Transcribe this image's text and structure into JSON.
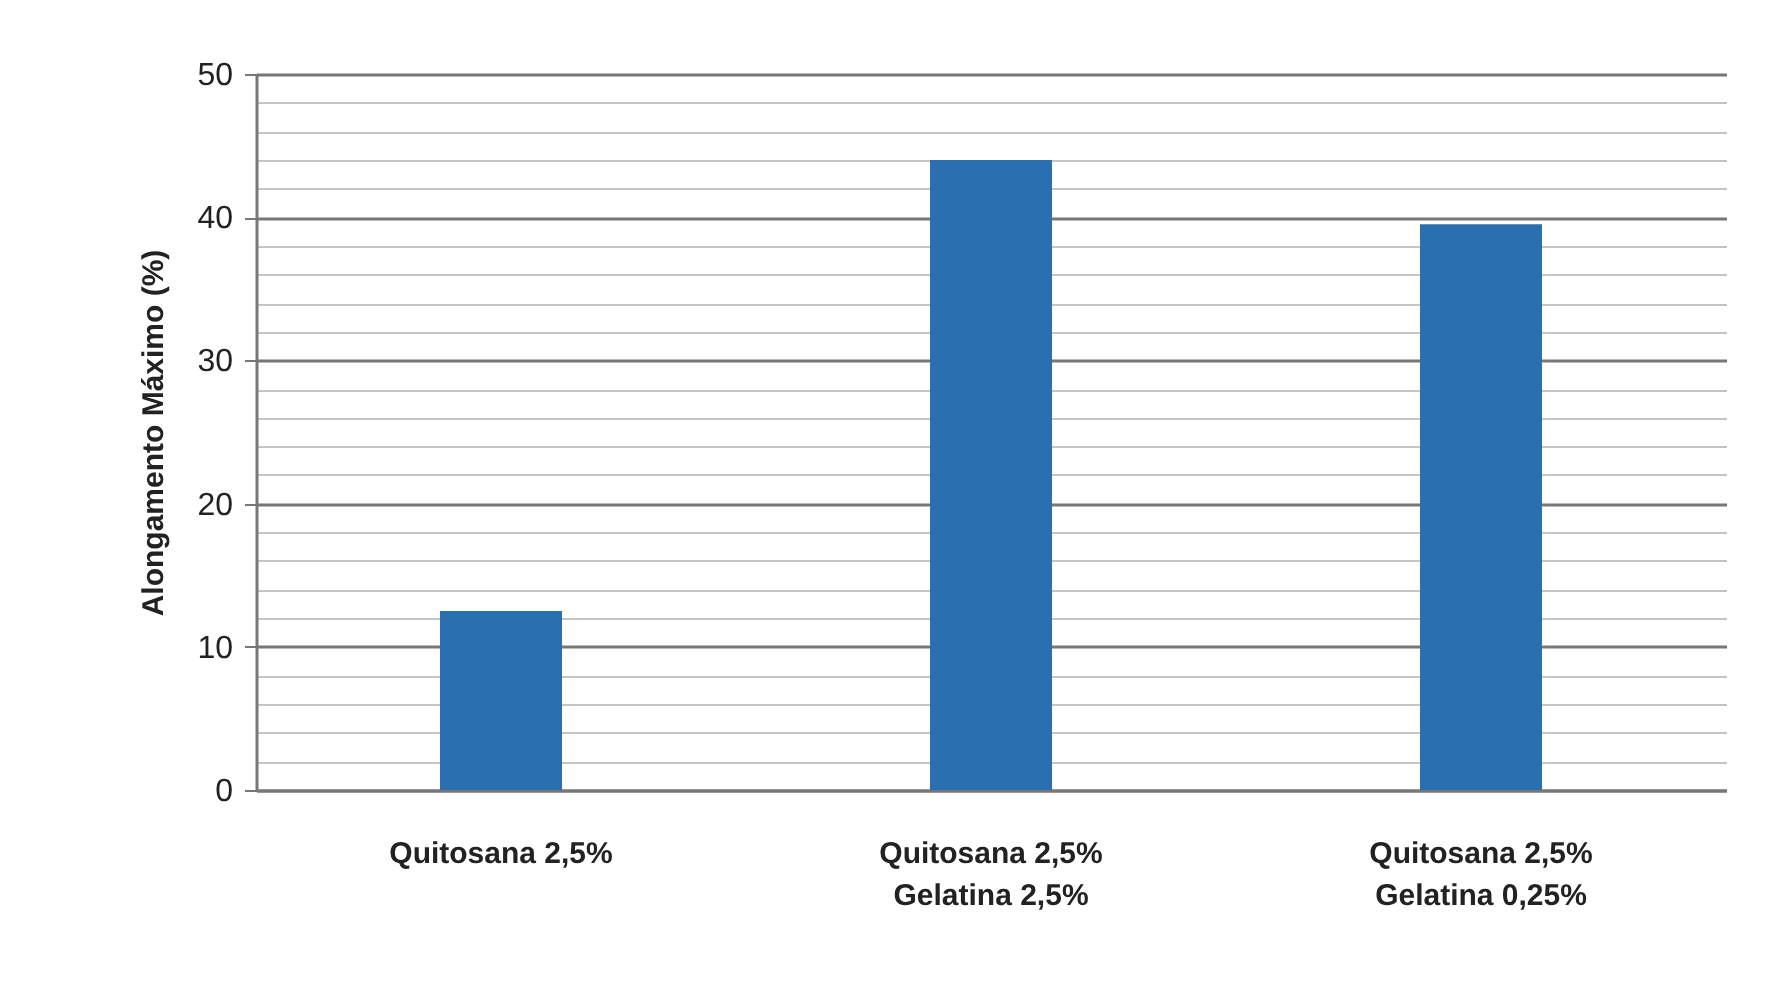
{
  "chart_data": {
    "type": "bar",
    "ylabel": "Alongamento Máximo (%)",
    "categories": [
      "Quitosana 2,5%",
      "Quitosana 2,5%\nGelatina 2,5%",
      "Quitosana 2,5%\nGelatina 0,25%"
    ],
    "values": [
      12.5,
      44,
      39.5
    ],
    "color": "#2a6fb0",
    "ylim": [
      0,
      50
    ],
    "yticks": [
      0,
      {
        "value": 2,
        "label": null
      },
      {
        "value": 4,
        "label": null
      },
      {
        "value": 6,
        "label": null
      },
      {
        "value": 8,
        "label": null
      },
      10,
      {
        "value": 12,
        "label": null
      },
      {
        "value": 14,
        "label": null
      },
      {
        "value": 16,
        "label": null
      },
      {
        "value": 18,
        "label": null
      },
      20,
      {
        "value": 22,
        "label": null
      },
      {
        "value": 24,
        "label": null
      },
      {
        "value": 26,
        "label": null
      },
      {
        "value": 28,
        "label": null
      },
      30,
      {
        "value": 32,
        "label": null
      },
      {
        "value": 34,
        "label": null
      },
      {
        "value": 36,
        "label": null
      },
      {
        "value": 38,
        "label": null
      },
      40,
      {
        "value": 42,
        "label": null
      },
      {
        "value": 44,
        "label": null
      },
      {
        "value": 46,
        "label": null
      },
      {
        "value": 48,
        "label": null
      },
      50
    ],
    "grid": true
  }
}
